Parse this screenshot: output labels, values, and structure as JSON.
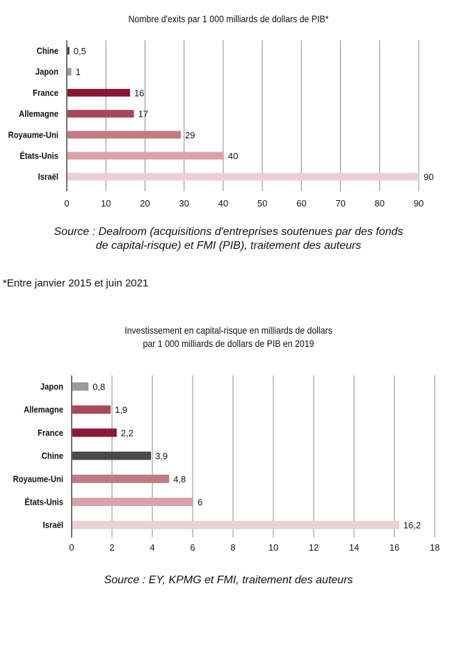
{
  "chart_data": [
    {
      "type": "bar",
      "orientation": "horizontal",
      "title": "Nombre d'exits par 1 000 milliards de dollars de PIB*",
      "categories": [
        "Chine",
        "Japon",
        "France",
        "Allemagne",
        "Royaume-Uni",
        "États-Unis",
        "Israël"
      ],
      "values": [
        0.5,
        1,
        16,
        17,
        29,
        40,
        90
      ],
      "value_labels": [
        "0,5",
        "1",
        "16",
        "17",
        "29",
        "40",
        "90"
      ],
      "colors": [
        "#3f3f3f",
        "#9b9b9b",
        "#8c1636",
        "#a9485b",
        "#c27a83",
        "#d9a4a9",
        "#ebd0d3"
      ],
      "xlim": [
        0,
        90
      ],
      "xticks": [
        "0",
        "10",
        "20",
        "30",
        "40",
        "50",
        "60",
        "70",
        "80",
        "90"
      ],
      "xtick_values": [
        0,
        10,
        20,
        30,
        40,
        50,
        60,
        70,
        80,
        90
      ],
      "grid": true,
      "source": "Source : Dealroom (acquisitions d'entreprises soutenues par des fonds de capital-risque) et FMI (PIB), traitement des auteurs"
    },
    {
      "type": "bar",
      "orientation": "horizontal",
      "title": "Investissement en capital-risque en milliards de dollars par 1 000 milliards de dollars de PIB en 2019",
      "categories": [
        "Japon",
        "Allemagne",
        "France",
        "Chine",
        "Royaume-Uni",
        "États-Unis",
        "Israël"
      ],
      "values": [
        0.8,
        1.9,
        2.2,
        3.9,
        4.8,
        6,
        16.2
      ],
      "value_labels": [
        "0,8",
        "1,9",
        "2,2",
        "3,9",
        "4,8",
        "6",
        "16,2"
      ],
      "colors": [
        "#9b9b9b",
        "#a9485b",
        "#8c1636",
        "#4a4a4a",
        "#c27a83",
        "#d9a4a9",
        "#ebd0d3"
      ],
      "xlim": [
        0,
        18
      ],
      "xticks": [
        "0",
        "2",
        "4",
        "6",
        "8",
        "10",
        "12",
        "14",
        "16",
        "18"
      ],
      "xtick_values": [
        0,
        2,
        4,
        6,
        8,
        10,
        12,
        14,
        16,
        18
      ],
      "grid": true,
      "source": "Source : EY, KPMG et FMI, traitement des auteurs"
    }
  ],
  "chart1": {
    "title": "Nombre d'exits par 1 000 milliards de dollars de PIB*",
    "source_line1": "Source : Dealroom (acquisitions d'entreprises soutenues par des fonds",
    "source_line2": "de capital-risque) et FMI (PIB), traitement des auteurs"
  },
  "footnote": "*Entre janvier 2015 et juin 2021",
  "chart2": {
    "title_line1": "Investissement en capital-risque en milliards de dollars",
    "title_line2": "par 1 000 milliards de dollars de PIB en 2019",
    "source": "Source : EY, KPMG et FMI, traitement des auteurs"
  }
}
